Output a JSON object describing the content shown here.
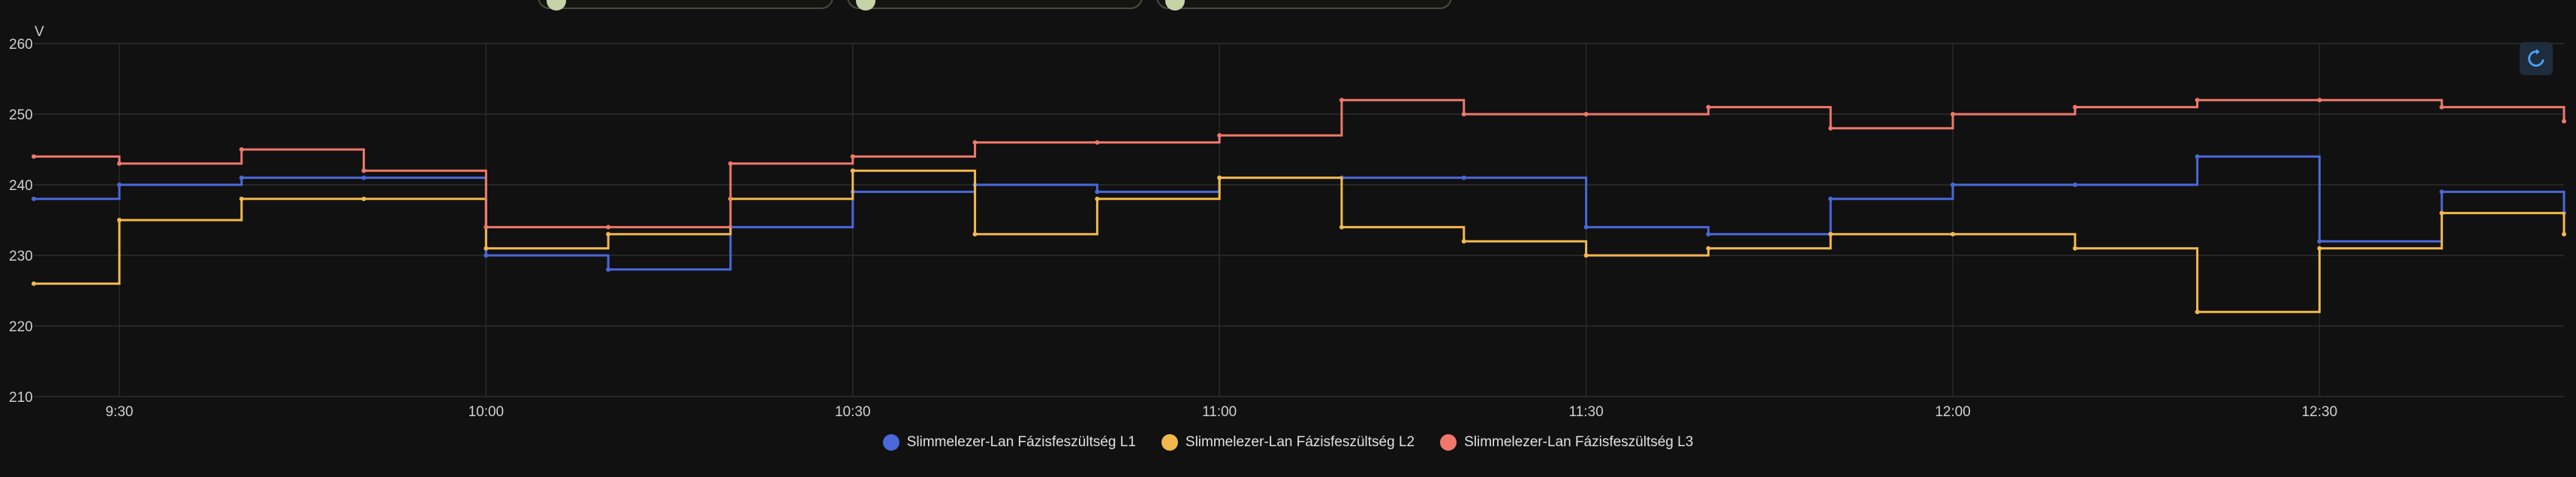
{
  "chart_data": {
    "type": "line",
    "unit_label": "V",
    "y_ticks": [
      "260",
      "250",
      "240",
      "230",
      "220",
      "210"
    ],
    "x_ticks": [
      "9:30",
      "10:00",
      "10:30",
      "11:00",
      "11:30",
      "12:00",
      "12:30"
    ],
    "ylim": [
      210,
      260
    ],
    "x_range": [
      "09:23",
      "12:50"
    ],
    "grid": true,
    "legend_position": "bottom-center",
    "x": [
      "09:23",
      "09:30",
      "09:40",
      "09:50",
      "10:00",
      "10:10",
      "10:20",
      "10:30",
      "10:40",
      "10:50",
      "11:00",
      "11:10",
      "11:20",
      "11:30",
      "11:40",
      "11:50",
      "12:00",
      "12:10",
      "12:20",
      "12:30",
      "12:40",
      "12:50"
    ],
    "series": [
      {
        "name": "Slimmelezer-Lan Fázisfeszültség L1",
        "color": "#4a68d9",
        "values": [
          238,
          240,
          241,
          241,
          230,
          228,
          234,
          239,
          240,
          239,
          241,
          241,
          241,
          234,
          233,
          238,
          240,
          240,
          244,
          232,
          239,
          236
        ]
      },
      {
        "name": "Slimmelezer-Lan Fázisfeszültség L2",
        "color": "#f2b84b",
        "values": [
          226,
          235,
          238,
          238,
          231,
          233,
          238,
          242,
          233,
          238,
          241,
          234,
          232,
          230,
          231,
          233,
          233,
          231,
          222,
          231,
          236,
          233
        ]
      },
      {
        "name": "Slimmelezer-Lan Fázisfeszültség L3",
        "color": "#f0776a",
        "values": [
          244,
          243,
          245,
          242,
          234,
          234,
          243,
          244,
          246,
          246,
          247,
          252,
          250,
          250,
          251,
          248,
          250,
          251,
          252,
          252,
          251,
          249
        ]
      }
    ]
  },
  "icons": {
    "reset_zoom": "restore-icon"
  }
}
